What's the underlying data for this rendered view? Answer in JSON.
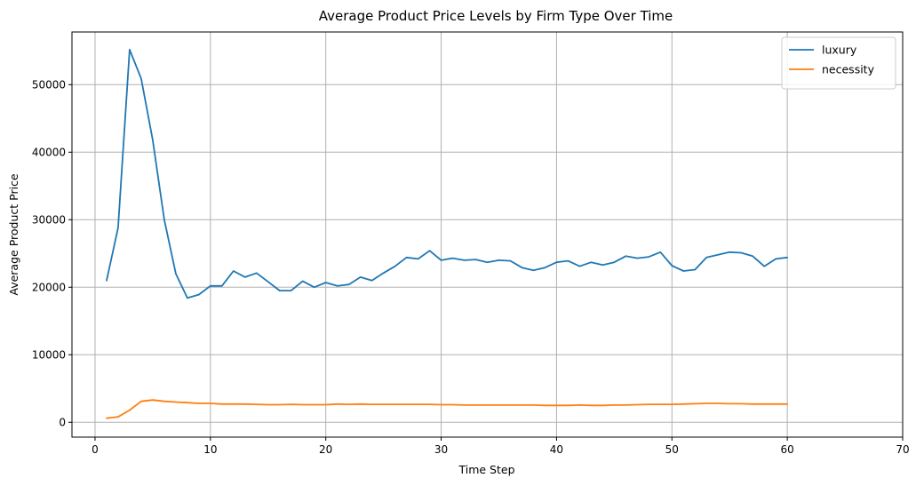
{
  "chart_data": {
    "type": "line",
    "title": "Average Product Price Levels by Firm Type Over Time",
    "xlabel": "Time Step",
    "ylabel": "Average Product Price",
    "xlim": [
      -2,
      70
    ],
    "ylim": [
      -2200,
      57800
    ],
    "xticks": [
      0,
      10,
      20,
      30,
      40,
      50,
      60,
      70
    ],
    "yticks": [
      0,
      10000,
      20000,
      30000,
      40000,
      50000
    ],
    "grid": true,
    "legend_position": "top-right",
    "series": [
      {
        "name": "luxury",
        "color": "#1f77b4",
        "x": [
          1,
          2,
          3,
          4,
          5,
          6,
          7,
          8,
          9,
          10,
          11,
          12,
          13,
          14,
          15,
          16,
          17,
          18,
          19,
          20,
          21,
          22,
          23,
          24,
          25,
          26,
          27,
          28,
          29,
          30,
          31,
          32,
          33,
          34,
          35,
          36,
          37,
          38,
          39,
          40,
          41,
          42,
          43,
          44,
          45,
          46,
          47,
          48,
          49,
          50,
          51,
          52,
          53,
          54,
          55,
          56,
          57,
          58,
          59,
          60
        ],
        "values": [
          21000,
          28800,
          55200,
          50900,
          41800,
          30000,
          22000,
          18400,
          18900,
          20200,
          20200,
          22400,
          21500,
          22100,
          20800,
          19500,
          19500,
          20900,
          20000,
          20700,
          20200,
          20400,
          21500,
          21000,
          22100,
          23100,
          24400,
          24200,
          25400,
          24000,
          24300,
          24000,
          24100,
          23700,
          24000,
          23900,
          22900,
          22500,
          22900,
          23700,
          23900,
          23100,
          23700,
          23300,
          23700,
          24600,
          24300,
          24500,
          25200,
          23200,
          22400,
          22600,
          24400,
          24800,
          25200,
          25100,
          24600,
          23100,
          24200,
          24400
        ]
      },
      {
        "name": "necessity",
        "color": "#ff7f0e",
        "x": [
          1,
          2,
          3,
          4,
          5,
          6,
          7,
          8,
          9,
          10,
          11,
          12,
          13,
          14,
          15,
          16,
          17,
          18,
          19,
          20,
          21,
          22,
          23,
          24,
          25,
          26,
          27,
          28,
          29,
          30,
          31,
          32,
          33,
          34,
          35,
          36,
          37,
          38,
          39,
          40,
          41,
          42,
          43,
          44,
          45,
          46,
          47,
          48,
          49,
          50,
          51,
          52,
          53,
          54,
          55,
          56,
          57,
          58,
          59,
          60
        ],
        "values": [
          600,
          800,
          1800,
          3100,
          3300,
          3100,
          3000,
          2900,
          2800,
          2800,
          2700,
          2700,
          2700,
          2650,
          2600,
          2600,
          2650,
          2600,
          2600,
          2600,
          2700,
          2650,
          2700,
          2650,
          2650,
          2650,
          2650,
          2650,
          2650,
          2600,
          2600,
          2550,
          2550,
          2550,
          2550,
          2550,
          2550,
          2550,
          2500,
          2500,
          2500,
          2550,
          2500,
          2500,
          2550,
          2550,
          2600,
          2650,
          2650,
          2650,
          2700,
          2750,
          2800,
          2800,
          2750,
          2750,
          2700,
          2700,
          2700,
          2700
        ]
      }
    ]
  }
}
